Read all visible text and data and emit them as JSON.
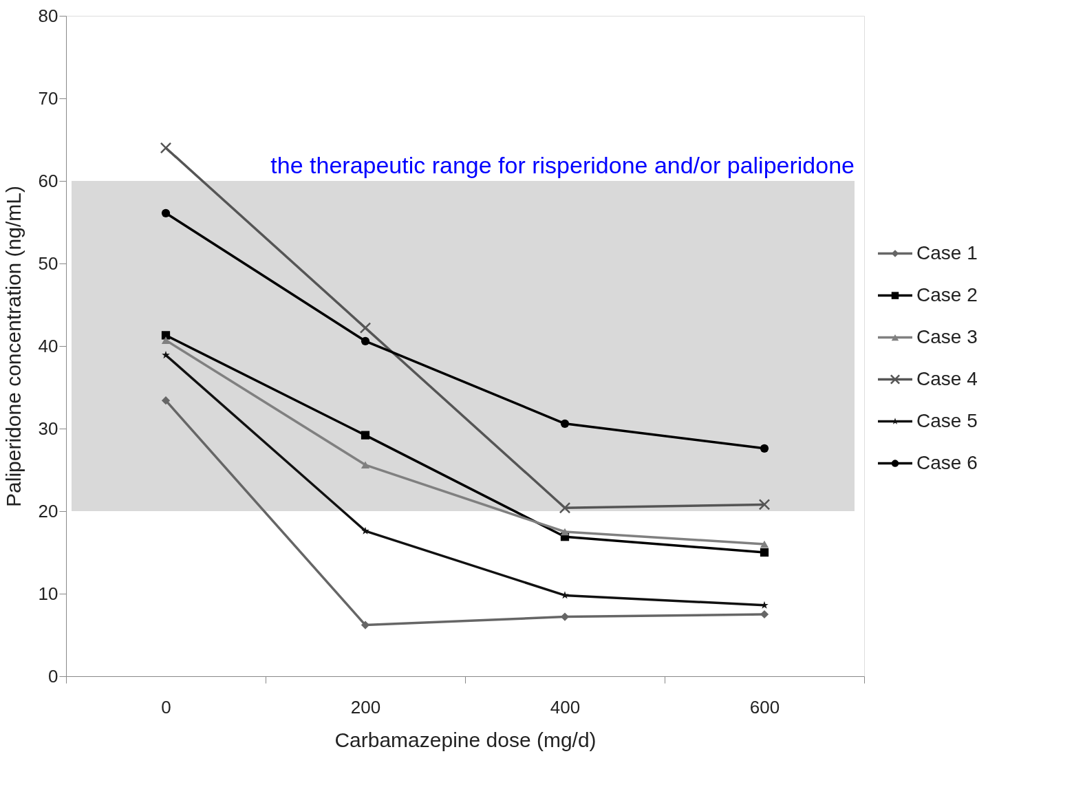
{
  "chart_data": {
    "type": "line",
    "xlabel": "Carbamazepine dose (mg/d)",
    "ylabel": "Paliperidone concentration (ng/mL)",
    "categories": [
      "0",
      "200",
      "400",
      "600"
    ],
    "ylim": [
      0,
      80
    ],
    "yticks": [
      0,
      10,
      20,
      30,
      40,
      50,
      60,
      70,
      80
    ],
    "grid": false,
    "legend": "right",
    "line_style": "solid",
    "bands": [
      {
        "axis": "y",
        "from": 20,
        "to": 60,
        "label": "the therapeutic range for risperidone and/or paliperidone",
        "color": "#d9d9d9"
      }
    ],
    "series": [
      {
        "name": "Case 1",
        "color": "#666666",
        "marker": "diamond",
        "values": [
          33.4,
          6.2,
          7.2,
          7.5
        ]
      },
      {
        "name": "Case 2",
        "color": "#000000",
        "marker": "square",
        "values": [
          41.3,
          29.2,
          16.9,
          15.0
        ]
      },
      {
        "name": "Case 3",
        "color": "#808080",
        "marker": "triangle",
        "values": [
          40.7,
          25.6,
          17.5,
          16.0
        ]
      },
      {
        "name": "Case 4",
        "color": "#555555",
        "marker": "cross",
        "values": [
          64.0,
          42.2,
          20.4,
          20.8
        ]
      },
      {
        "name": "Case 5",
        "color": "#111111",
        "marker": "star",
        "values": [
          38.9,
          17.6,
          9.8,
          8.6
        ]
      },
      {
        "name": "Case 6",
        "color": "#000000",
        "marker": "circle",
        "values": [
          56.1,
          40.6,
          30.6,
          27.6
        ]
      }
    ]
  }
}
